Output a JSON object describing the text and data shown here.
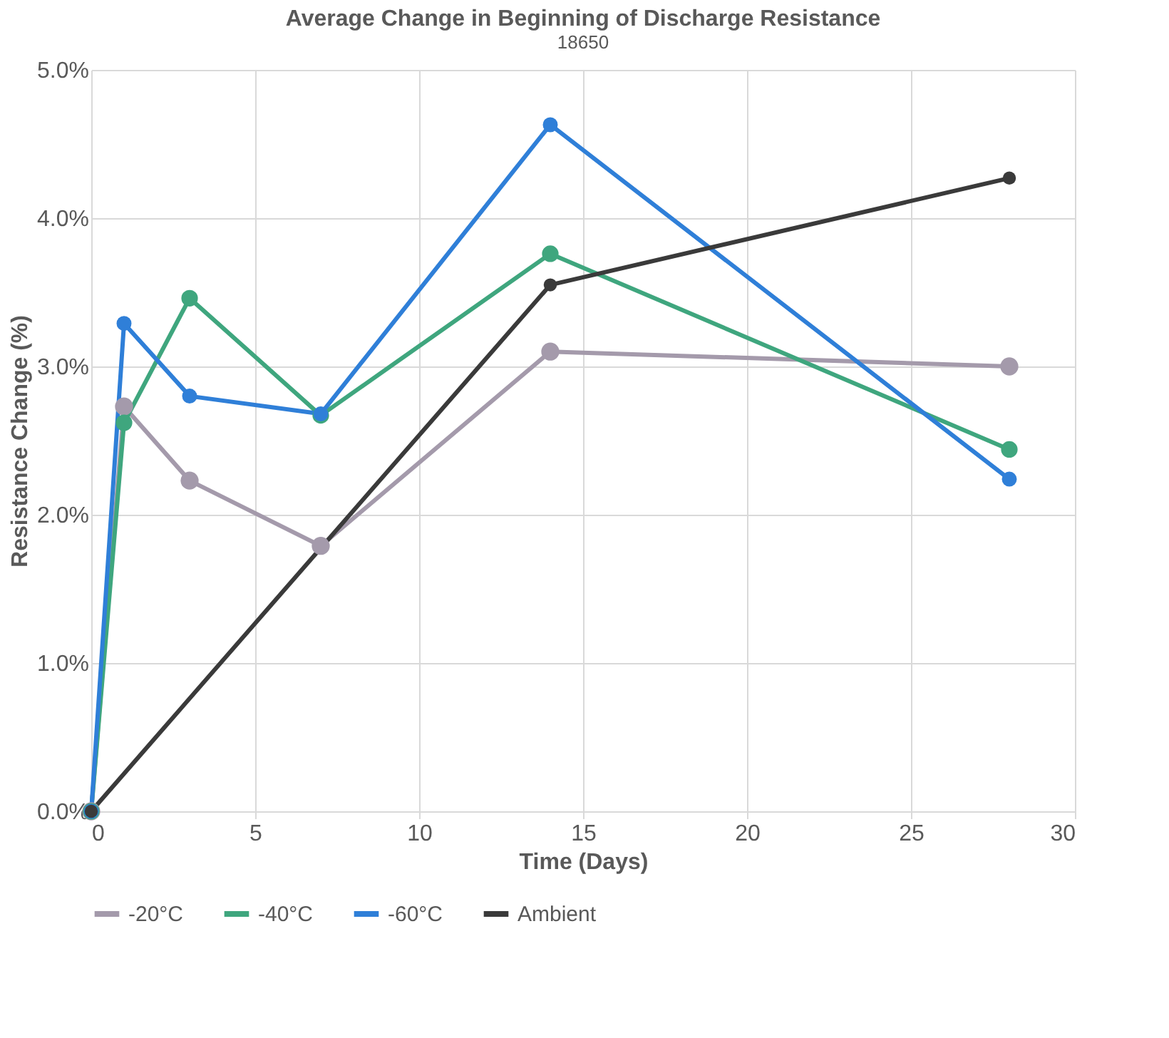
{
  "chart_data": {
    "type": "line",
    "title": "Average Change in Beginning of Discharge Resistance",
    "subtitle": "18650",
    "xlabel": "Time (Days)",
    "ylabel": "Resistance Change (%)",
    "x": [
      0,
      1,
      3,
      7,
      14,
      28
    ],
    "series": [
      {
        "name": "-20°C",
        "color": "#a49aab",
        "values": [
          0,
          2.73,
          2.23,
          1.79,
          3.1,
          3.0
        ]
      },
      {
        "name": "-40°C",
        "color": "#3fa67e",
        "values": [
          0,
          2.62,
          3.46,
          2.67,
          3.76,
          2.44
        ]
      },
      {
        "name": "-60°C",
        "color": "#2f7fd8",
        "values": [
          0,
          3.29,
          2.8,
          2.68,
          4.63,
          2.24
        ]
      },
      {
        "name": "Ambient",
        "color": "#3a3a3a",
        "x": [
          0,
          14,
          28
        ],
        "values": [
          0,
          3.55,
          4.27
        ]
      }
    ],
    "xlim": [
      0,
      30
    ],
    "xticks": [
      0,
      5,
      10,
      15,
      20,
      25,
      30
    ],
    "ylim": [
      0,
      5
    ],
    "yticks": [
      {
        "value": 0,
        "label": "0.0%"
      },
      {
        "value": 1,
        "label": "1.0%"
      },
      {
        "value": 2,
        "label": "2.0%"
      },
      {
        "value": 3,
        "label": "3.0%"
      },
      {
        "value": 4,
        "label": "4.0%"
      },
      {
        "value": 5,
        "label": "5.0%"
      }
    ],
    "grid": true,
    "legend": "bottom",
    "marker": "circle",
    "line_style": "solid"
  }
}
